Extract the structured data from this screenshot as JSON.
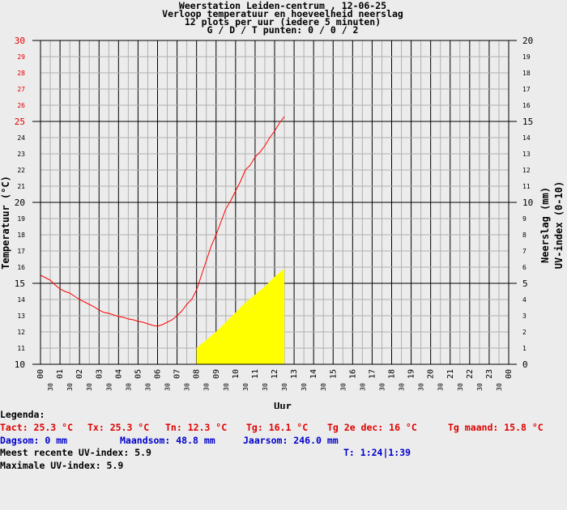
{
  "chart_data": {
    "type": "line",
    "title": [
      "Weerstation Leiden-centrum , 12-06-25",
      "Verloop temperatuur en hoeveelheid neerslag",
      "12 plots per uur (iedere 5 minuten)",
      "G / D / T punten: 0 / 0 / 2"
    ],
    "xlabel": "Uur",
    "ylabel_left": "Temperatuur (°C)",
    "ylabel_right_1": "Neerslag (mm)",
    "ylabel_right_2": "UV-index (0-10)",
    "xlim": [
      0,
      24
    ],
    "x_ticks": [
      "00",
      "30",
      "01",
      "30",
      "02",
      "30",
      "03",
      "30",
      "04",
      "30",
      "05",
      "30",
      "06",
      "30",
      "07",
      "30",
      "08",
      "30",
      "09",
      "30",
      "10",
      "30",
      "11",
      "30",
      "12",
      "30",
      "13",
      "30",
      "14",
      "30",
      "15",
      "30",
      "16",
      "30",
      "17",
      "30",
      "18",
      "30",
      "19",
      "30",
      "20",
      "30",
      "21",
      "30",
      "22",
      "30",
      "23",
      "30",
      "00"
    ],
    "ylim_left": [
      10,
      30
    ],
    "y_left_ticks": [
      "10",
      "11",
      "12",
      "13",
      "14",
      "15",
      "16",
      "17",
      "18",
      "19",
      "20",
      "21",
      "22",
      "23",
      "24",
      "25",
      "26",
      "27",
      "28",
      "29",
      "30"
    ],
    "ylim_right": [
      0,
      20
    ],
    "y_right_ticks": [
      "0",
      "1",
      "2",
      "3",
      "4",
      "5",
      "6",
      "7",
      "8",
      "9",
      "10",
      "11",
      "12",
      "13",
      "14",
      "15",
      "16",
      "17",
      "18",
      "19",
      "20"
    ],
    "grid": true,
    "series": [
      {
        "color": "#ff0000",
        "axis": "left",
        "x": [
          0.0,
          0.25,
          0.5,
          0.75,
          1.0,
          1.25,
          1.5,
          1.75,
          2.0,
          2.25,
          2.5,
          2.75,
          3.0,
          3.25,
          3.5,
          3.75,
          4.0,
          4.25,
          4.5,
          4.75,
          5.0,
          5.25,
          5.5,
          5.75,
          6.0,
          6.25,
          6.5,
          6.75,
          7.0,
          7.25,
          7.5,
          7.75,
          8.0,
          8.25,
          8.5,
          8.75,
          9.0,
          9.25,
          9.5,
          9.75,
          10.0,
          10.25,
          10.5,
          10.75,
          11.0,
          11.25,
          11.5,
          11.75,
          12.0,
          12.25,
          12.5
        ],
        "values": [
          15.5,
          15.35,
          15.2,
          14.9,
          14.65,
          14.5,
          14.4,
          14.2,
          14.0,
          13.85,
          13.7,
          13.55,
          13.35,
          13.2,
          13.15,
          13.05,
          12.95,
          12.9,
          12.8,
          12.75,
          12.65,
          12.6,
          12.5,
          12.4,
          12.35,
          12.45,
          12.6,
          12.75,
          13.0,
          13.3,
          13.7,
          14.0,
          14.6,
          15.5,
          16.4,
          17.3,
          18.0,
          18.8,
          19.6,
          20.1,
          20.7,
          21.3,
          22.0,
          22.3,
          22.8,
          23.1,
          23.5,
          24.0,
          24.4,
          24.9,
          25.3
        ]
      },
      {
        "color": "#ffff00",
        "axis": "right",
        "type": "area",
        "x": [
          8.0,
          8.5,
          9.0,
          9.5,
          10.0,
          10.5,
          11.0,
          11.5,
          12.0,
          12.5
        ],
        "values": [
          1.0,
          1.5,
          2.0,
          2.6,
          3.2,
          3.8,
          4.3,
          4.8,
          5.4,
          5.9
        ]
      }
    ]
  },
  "legend": {
    "heading": "Legenda:",
    "tact": "Tact: 25.3 °C",
    "tx": "Tx: 25.3 °C",
    "tn": "Tn: 12.3 °C",
    "tg": "Tg: 16.1 °C",
    "tg2e": "Tg 2e dec: 16 °C",
    "tgmaand": "Tg maand: 15.8 °C",
    "dagsom": "Dagsom: 0 mm",
    "maandsom": "Maandsom: 48.8 mm",
    "jaarsom": "Jaarsom: 246.0 mm",
    "uv_recent": "Meest recente UV-index: 5.9",
    "time": "T: 1:24|1:39",
    "uv_max": "Maximale UV-index: 5.9"
  }
}
